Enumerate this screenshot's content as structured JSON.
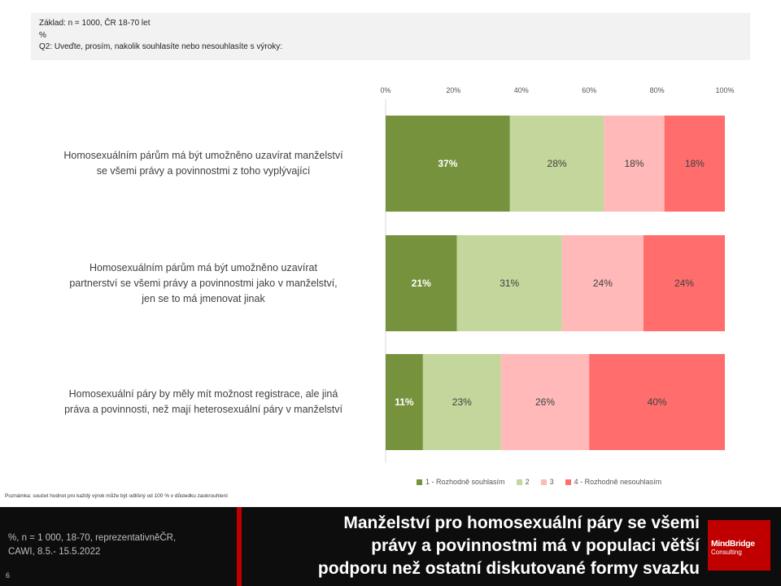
{
  "base_box": {
    "line1": "Základ: n = 1000, ČR 18-70 let",
    "line2": "%",
    "line3": "Q2: Uveďte,  prosím, nakolik souhlasíte nebo nesouhlasíte s výroky:"
  },
  "chart_data": {
    "type": "bar",
    "orientation": "horizontal",
    "stacked": true,
    "percent_stacked": true,
    "categories": [
      "Homosexuálním párům má být umožněno uzavírat manželství se všemi právy a povinnostmi z toho vyplývající",
      "Homosexuálním párům má být umožněno uzavírat partnerství se všemi právy a povinnostmi jako v manželství, jen se to má jmenovat jinak",
      "Homosexuální páry by měly mít možnost registrace, ale jiná práva a povinnosti, než mají heterosexuální páry v manželství"
    ],
    "series": [
      {
        "name": "1 - Rozhodně souhlasím",
        "values": [
          37,
          21,
          11
        ],
        "labels": [
          "37%",
          "21%",
          "11%"
        ],
        "color": "#76923c",
        "label_color": "#ffffff",
        "label_bold": true
      },
      {
        "name": "2",
        "values": [
          28,
          31,
          23
        ],
        "labels": [
          "28%",
          "31%",
          "23%"
        ],
        "color": "#c3d69b",
        "label_color": "#404040",
        "label_bold": false
      },
      {
        "name": "3",
        "values": [
          18,
          24,
          26
        ],
        "labels": [
          "18%",
          "24%",
          "26%"
        ],
        "color": "#ffb9b9",
        "label_color": "#404040",
        "label_bold": false
      },
      {
        "name": "4 - Rozhodně nesouhlasím",
        "values": [
          18,
          24,
          40
        ],
        "labels": [
          "18%",
          "24%",
          "40%"
        ],
        "color": "#ff6d6d",
        "label_color": "#404040",
        "label_bold": false
      }
    ],
    "xlim": [
      0,
      100
    ],
    "ticks": [
      "0%",
      "20%",
      "40%",
      "60%",
      "80%",
      "100%"
    ],
    "legend_position": "bottom"
  },
  "row_labels": [
    [
      "Homosexuálním párům má být umožněno uzavírat manželství",
      "se všemi právy a povinnostmi z toho vyplývající"
    ],
    [
      "Homosexuálním párům má být umožněno uzavírat",
      "partnerství se všemi právy a povinnostmi jako v manželství,",
      "jen se to má jmenovat jinak"
    ],
    [
      "Homosexuální páry by měly mít možnost registrace, ale jiná",
      "práva a povinnosti, než mají heterosexuální páry v manželství"
    ]
  ],
  "note": "Poznámka: součet hodnot pro každý výrok může být odlišný od 100 % v důsledku zaokrouhlení",
  "footer": {
    "meta_line1": "%, n = 1 000, 18-70, reprezentativněČR,",
    "meta_line2": "CAWI, 8.5.- 15.5.2022",
    "page_number": "6",
    "headline_line1": "Manželství pro homosexuální páry se všemi",
    "headline_line2": "právy a povinnostmi má v populaci větší",
    "headline_line3": "podporu než ostatní diskutované formy svazku",
    "logo_main": "MindBridge",
    "logo_sub": "Consulting"
  }
}
